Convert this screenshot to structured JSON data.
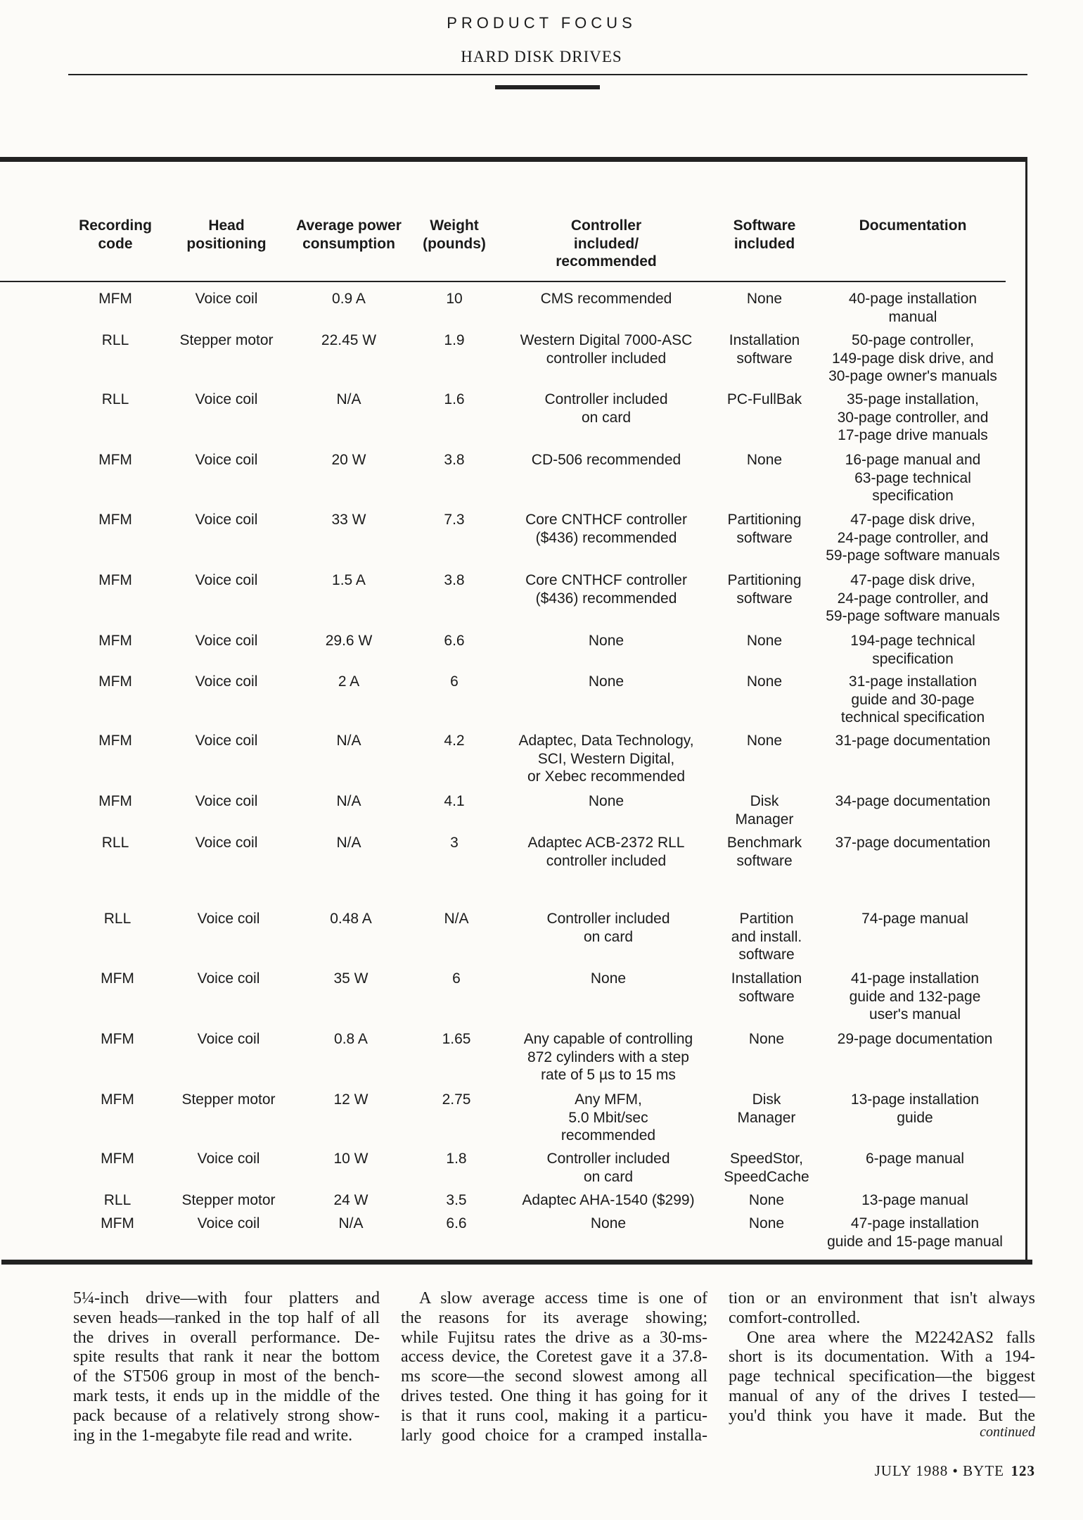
{
  "header": {
    "kicker": "PRODUCT FOCUS",
    "title": "HARD DISK DRIVES"
  },
  "table": {
    "columns": [
      "Recording\ncode",
      "Head\npositioning",
      "Average power\nconsumption",
      "Weight\n(pounds)",
      "Controller\nincluded/\nrecommended",
      "Software\nincluded",
      "Documentation"
    ],
    "rows": [
      [
        "MFM",
        "Voice coil",
        "0.9 A",
        "10",
        "CMS recommended",
        "None",
        "40-page installation\nmanual"
      ],
      [
        "RLL",
        "Stepper motor",
        "22.45 W",
        "1.9",
        "Western Digital 7000-ASC\ncontroller included",
        "Installation\nsoftware",
        "50-page controller,\n149-page disk drive, and\n30-page owner's manuals"
      ],
      [
        "RLL",
        "Voice coil",
        "N/A",
        "1.6",
        "Controller included\non card",
        "PC-FullBak",
        "35-page installation,\n30-page controller, and\n17-page drive manuals"
      ],
      [
        "MFM",
        "Voice coil",
        "20 W",
        "3.8",
        "CD-506 recommended",
        "None",
        "16-page manual and\n63-page technical\nspecification"
      ],
      [
        "MFM",
        "Voice coil",
        "33 W",
        "7.3",
        "Core CNTHCF controller\n($436) recommended",
        "Partitioning\nsoftware",
        "47-page disk drive,\n24-page controller, and\n59-page software manuals"
      ],
      [
        "MFM",
        "Voice coil",
        "1.5 A",
        "3.8",
        "Core CNTHCF controller\n($436) recommended",
        "Partitioning\nsoftware",
        "47-page disk drive,\n24-page controller, and\n59-page software manuals"
      ],
      [
        "MFM",
        "Voice coil",
        "29.6 W",
        "6.6",
        "None",
        "None",
        "194-page technical\nspecification"
      ],
      [
        "MFM",
        "Voice coil",
        "2 A",
        "6",
        "None",
        "None",
        "31-page installation\nguide and 30-page\ntechnical specification"
      ],
      [
        "MFM",
        "Voice coil",
        "N/A",
        "4.2",
        "Adaptec, Data Technology,\nSCI, Western Digital,\nor Xebec recommended",
        "None",
        "31-page documentation"
      ],
      [
        "MFM",
        "Voice coil",
        "N/A",
        "4.1",
        "None",
        "Disk\nManager",
        "34-page documentation"
      ],
      [
        "RLL",
        "Voice coil",
        "N/A",
        "3",
        "Adaptec ACB-2372 RLL\ncontroller included",
        "Benchmark\nsoftware",
        "37-page documentation"
      ],
      [
        "RLL",
        "Voice coil",
        "0.48 A",
        "N/A",
        "Controller included\non card",
        "Partition\nand install.\nsoftware",
        "74-page manual"
      ],
      [
        "MFM",
        "Voice coil",
        "35 W",
        "6",
        "None",
        "Installation\nsoftware",
        "41-page installation\nguide and 132-page\nuser's manual"
      ],
      [
        "MFM",
        "Voice coil",
        "0.8 A",
        "1.65",
        "Any capable of controlling\n872 cylinders with a step\nrate of 5 µs to 15 ms",
        "None",
        "29-page documentation"
      ],
      [
        "MFM",
        "Stepper motor",
        "12 W",
        "2.75",
        "Any MFM,\n5.0 Mbit/sec\nrecommended",
        "Disk\nManager",
        "13-page installation\nguide"
      ],
      [
        "MFM",
        "Voice coil",
        "10 W",
        "1.8",
        "Controller included\non card",
        "SpeedStor,\nSpeedCache",
        "6-page manual"
      ],
      [
        "RLL",
        "Stepper motor",
        "24 W",
        "3.5",
        "Adaptec AHA-1540 ($299)",
        "None",
        "13-page manual"
      ],
      [
        "MFM",
        "Voice coil",
        "N/A",
        "6.6",
        "None",
        "None",
        "47-page installation\nguide and 15-page manual"
      ]
    ]
  },
  "body": {
    "columns": [
      [
        "5¼-inch drive—with four platters and",
        "seven heads—ranked in the top half of all",
        "the drives in overall performance. De-",
        "spite results that rank it near the bottom",
        "of the ST506 group in most of the bench-",
        "mark tests, it ends up in the middle of the",
        "pack because of a relatively strong show-",
        "ing in the 1-megabyte file read and write."
      ],
      [
        "A slow average access time is one of",
        "the reasons for its average showing;",
        "while Fujitsu rates the drive as a 30-ms-",
        "access device, the Coretest gave it a 37.8-",
        "ms score—the second slowest among all",
        "drives tested. One thing it has going for it",
        "is that it runs cool, making it a particu-",
        "larly good choice for a cramped installa-"
      ],
      [
        "tion or an environment that isn't always",
        "comfort-controlled.",
        "One area where the M2242AS2 falls",
        "short is its documentation. With a 194-",
        "page technical specification—the biggest",
        "manual of any of the drives I tested—",
        "you'd think you have it made. But the"
      ]
    ],
    "continued": "continued"
  },
  "footer": {
    "issue": "JULY 1988 • BYTE",
    "page": "123"
  }
}
